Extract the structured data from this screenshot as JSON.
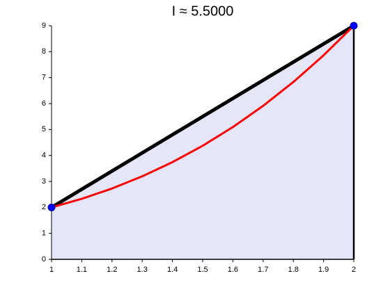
{
  "chart_data": {
    "type": "line",
    "title": "I ≈ 5.5000",
    "series": [
      {
        "color": "#000000",
        "fill": "#e6e6fa",
        "marker_color": "#0000ff",
        "x": [
          1,
          2
        ],
        "values": [
          2,
          9
        ]
      },
      {
        "color": "#ff0000",
        "x": [
          1,
          1.1,
          1.2,
          1.3,
          1.4,
          1.5,
          1.6,
          1.7,
          1.8,
          1.9,
          2
        ],
        "values": [
          2,
          2.331,
          2.728,
          3.197,
          3.744,
          4.375,
          5.096,
          5.913,
          6.832,
          7.859,
          9
        ]
      }
    ],
    "xlim": [
      1,
      2
    ],
    "xticks": [
      1,
      1.1,
      1.2,
      1.3,
      1.4,
      1.5,
      1.6,
      1.7,
      1.8,
      1.9,
      2
    ],
    "ylim": [
      0,
      9
    ],
    "yticks": [
      0,
      1,
      2,
      3,
      4,
      5,
      6,
      7,
      8,
      9
    ],
    "grid": false
  }
}
